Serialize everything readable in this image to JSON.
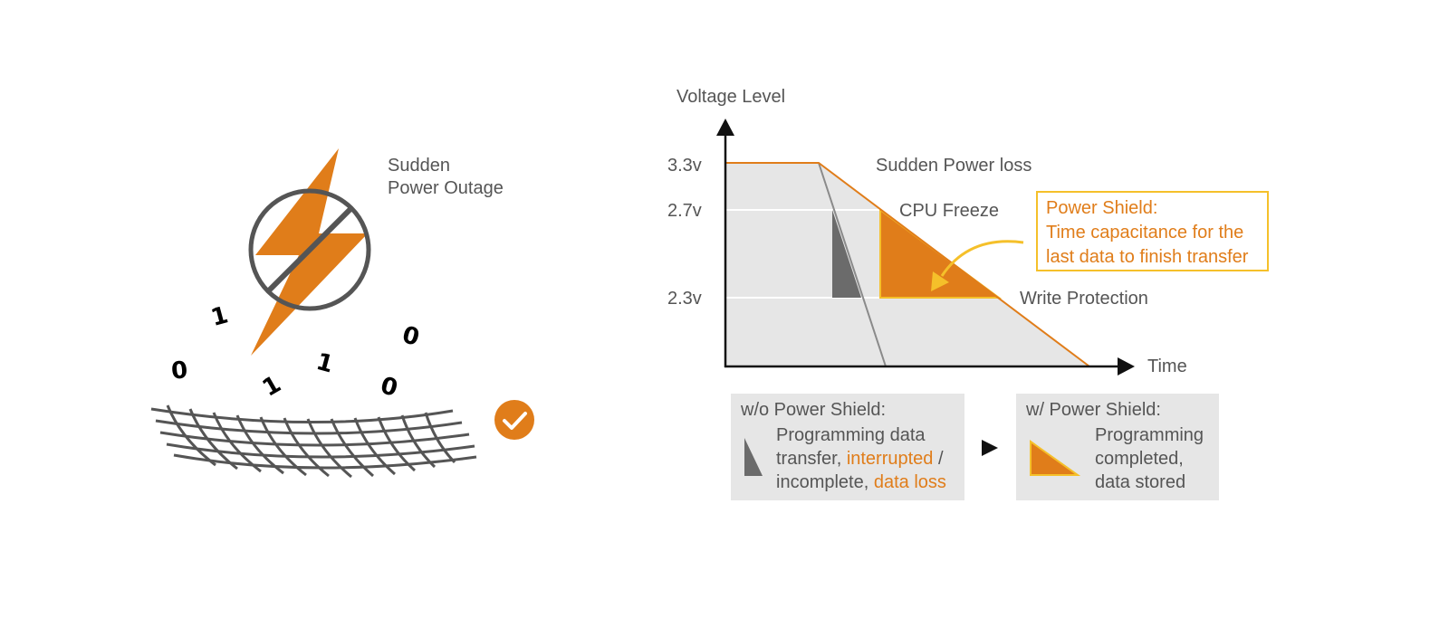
{
  "left": {
    "outage_label_line1": "Sudden",
    "outage_label_line2": "Power Outage",
    "bits": [
      "1",
      "0",
      "1",
      "1",
      "0",
      "0"
    ]
  },
  "chart": {
    "y_axis_label": "Voltage Level",
    "x_axis_label": "Time",
    "ticks": [
      "3.3v",
      "2.7v",
      "2.3v"
    ],
    "annotations": {
      "sudden_power_loss": "Sudden Power loss",
      "cpu_freeze": "CPU Freeze",
      "write_protection": "Write Protection"
    },
    "callout": {
      "line1": "Power Shield:",
      "line2": "Time capacitance for the",
      "line3": "last data to finish transfer"
    }
  },
  "legend": {
    "without": {
      "title": "w/o Power Shield:",
      "line1": "Programming data",
      "line2_a": "transfer, ",
      "line2_b": "interrupted",
      "line2_c": " /",
      "line3_a": "incomplete, ",
      "line3_b": "data loss"
    },
    "with": {
      "title": "w/ Power Shield:",
      "line1": "Programming",
      "line2": "completed,",
      "line3": "data stored"
    }
  },
  "colors": {
    "orange": "#e07d1a",
    "yellow": "#f5c02a",
    "gray_dark": "#555555",
    "panel_gray": "#e6e6e6"
  }
}
